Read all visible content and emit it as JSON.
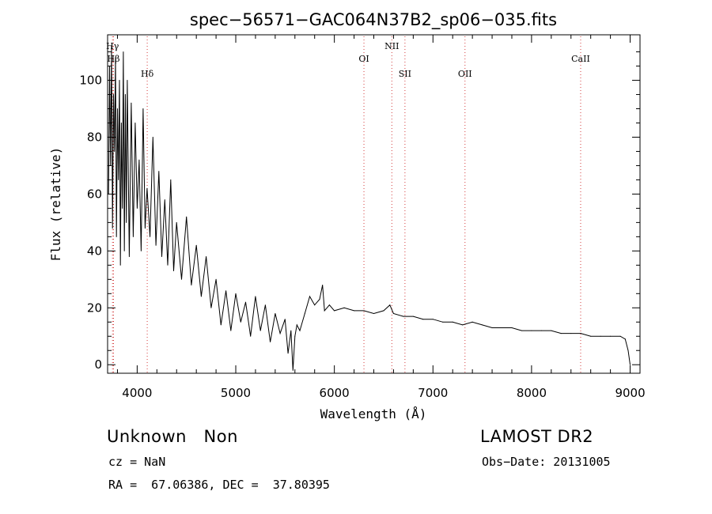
{
  "chart_data": {
    "type": "line",
    "title": "spec−56571−GAC064N37B2_sp06−035.fits",
    "xlabel": "Wavelength (Å)",
    "ylabel": "Flux (relative)",
    "xlim": [
      3700,
      9100
    ],
    "ylim": [
      -3,
      116
    ],
    "xticks": [
      4000,
      5000,
      6000,
      7000,
      8000,
      9000
    ],
    "yticks": [
      0,
      20,
      40,
      60,
      80,
      100
    ],
    "grid": false,
    "series": [
      {
        "x": [
          3710,
          3720,
          3730,
          3740,
          3750,
          3760,
          3770,
          3780,
          3790,
          3800,
          3810,
          3820,
          3830,
          3840,
          3850,
          3860,
          3870,
          3880,
          3890,
          3900,
          3920,
          3940,
          3960,
          3980,
          4000,
          4020,
          4040,
          4060,
          4080,
          4100,
          4130,
          4160,
          4190,
          4220,
          4250,
          4280,
          4310,
          4340,
          4370,
          4400,
          4450,
          4500,
          4550,
          4600,
          4650,
          4700,
          4750,
          4800,
          4850,
          4900,
          4950,
          5000,
          5050,
          5100,
          5150,
          5200,
          5250,
          5300,
          5350,
          5400,
          5450,
          5500,
          5530,
          5560,
          5580,
          5600,
          5620,
          5650,
          5700,
          5750,
          5800,
          5850,
          5880,
          5900,
          5950,
          6000,
          6100,
          6200,
          6300,
          6400,
          6500,
          6563,
          6600,
          6700,
          6800,
          6900,
          7000,
          7100,
          7200,
          7300,
          7400,
          7500,
          7600,
          7700,
          7800,
          7900,
          8000,
          8100,
          8200,
          8300,
          8400,
          8500,
          8600,
          8700,
          8800,
          8900,
          8950,
          8980,
          9000
        ],
        "y": [
          60,
          105,
          70,
          112,
          48,
          95,
          75,
          108,
          45,
          90,
          65,
          100,
          35,
          85,
          55,
          110,
          40,
          95,
          50,
          100,
          38,
          92,
          45,
          85,
          55,
          72,
          40,
          90,
          48,
          62,
          45,
          80,
          42,
          68,
          38,
          58,
          35,
          65,
          33,
          50,
          30,
          52,
          28,
          42,
          24,
          38,
          20,
          30,
          14,
          26,
          12,
          25,
          15,
          22,
          10,
          24,
          12,
          21,
          8,
          18,
          11,
          16,
          4,
          12,
          -2,
          10,
          14,
          12,
          18,
          24,
          21,
          23,
          28,
          19,
          21,
          19,
          20,
          19,
          19,
          18,
          19,
          21,
          18,
          17,
          17,
          16,
          16,
          15,
          15,
          14,
          15,
          14,
          13,
          13,
          13,
          12,
          12,
          12,
          12,
          11,
          11,
          11,
          10,
          10,
          10,
          10,
          9,
          5,
          0
        ]
      }
    ],
    "annotations": [
      {
        "label": "Hγ",
        "x": 3750,
        "level": 1
      },
      {
        "label": "Hβ",
        "x": 3760,
        "level": 2
      },
      {
        "label": "Hδ",
        "x": 4102,
        "level": 3
      },
      {
        "label": "OI",
        "x": 6300,
        "level": 2
      },
      {
        "label": "NII",
        "x": 6583,
        "level": 1
      },
      {
        "label": "SII",
        "x": 6716,
        "level": 3
      },
      {
        "label": "OII",
        "x": 7325,
        "level": 3
      },
      {
        "label": "CaII",
        "x": 8498,
        "level": 2
      }
    ],
    "line_color": "#000000",
    "marker_line_color": "#d43c3c"
  },
  "info": {
    "class_text": "Unknown   Non",
    "cz_text": "cz = NaN",
    "coords_text": "RA =  67.06386, DEC =  37.80395",
    "survey_text": "LAMOST DR2",
    "obs_date_text": "Obs−Date: 20131005"
  }
}
